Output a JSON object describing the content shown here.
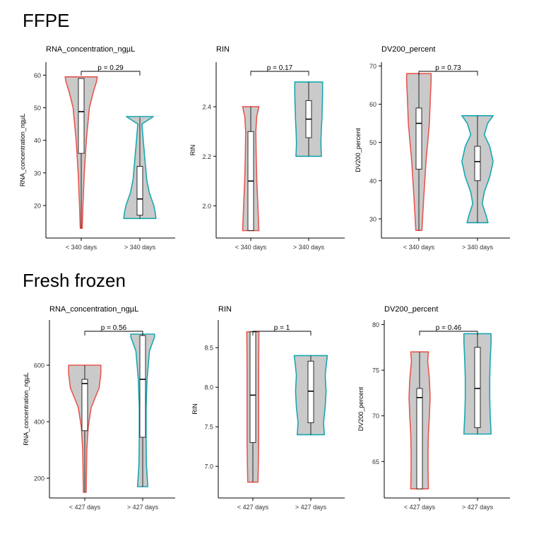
{
  "sections": [
    {
      "title": "FFPE",
      "panels": [
        {
          "title": "RNA_concentration_ngµL",
          "ylabel": "RNA_concentration_ngµL",
          "ylim": [
            10,
            64
          ],
          "yticks": [
            20,
            30,
            40,
            50,
            60
          ],
          "p_label": "p = 0.29",
          "groups": [
            {
              "label": "< 340 days",
              "color": "#e8564e",
              "min": 13,
              "max": 59.5,
              "q1": 36,
              "median": 48.8,
              "q3": 59,
              "wmin": 13,
              "wmax": 59,
              "violin": [
                [
                  13,
                  0.06
                ],
                [
                  20,
                  0.1
                ],
                [
                  30,
                  0.18
                ],
                [
                  40,
                  0.3
                ],
                [
                  50,
                  0.48
                ],
                [
                  55,
                  0.72
                ],
                [
                  58,
                  0.9
                ],
                [
                  59.5,
                  0.95
                ]
              ]
            },
            {
              "label": "> 340 days",
              "color": "#17a8b0",
              "min": 16,
              "max": 47.3,
              "q1": 17,
              "median": 22,
              "q3": 32,
              "wmin": 16,
              "wmax": 47,
              "violin": [
                [
                  16,
                  0.95
                ],
                [
                  18,
                  0.9
                ],
                [
                  20,
                  0.82
                ],
                [
                  24,
                  0.55
                ],
                [
                  28,
                  0.4
                ],
                [
                  34,
                  0.3
                ],
                [
                  40,
                  0.2
                ],
                [
                  45,
                  0.12
                ],
                [
                  47.3,
                  0.8
                ]
              ]
            }
          ]
        },
        {
          "title": "RIN",
          "ylabel": "RIN",
          "ylim": [
            1.87,
            2.58
          ],
          "yticks": [
            2.0,
            2.2,
            2.4
          ],
          "p_label": "p = 0.17",
          "groups": [
            {
              "label": "< 340 days",
              "color": "#e8564e",
              "min": 1.9,
              "max": 2.4,
              "q1": 1.9,
              "median": 2.1,
              "q3": 2.3,
              "wmin": 1.9,
              "wmax": 2.4,
              "violin": [
                [
                  1.9,
                  0.48
                ],
                [
                  2.0,
                  0.42
                ],
                [
                  2.1,
                  0.36
                ],
                [
                  2.2,
                  0.32
                ],
                [
                  2.3,
                  0.3
                ],
                [
                  2.36,
                  0.35
                ],
                [
                  2.4,
                  0.48
                ]
              ]
            },
            {
              "label": "> 340 days",
              "color": "#17a8b0",
              "min": 2.2,
              "max": 2.5,
              "q1": 2.275,
              "median": 2.35,
              "q3": 2.425,
              "wmin": 2.2,
              "wmax": 2.5,
              "violin": [
                [
                  2.2,
                  0.75
                ],
                [
                  2.25,
                  0.72
                ],
                [
                  2.3,
                  0.74
                ],
                [
                  2.35,
                  0.78
                ],
                [
                  2.4,
                  0.8
                ],
                [
                  2.45,
                  0.82
                ],
                [
                  2.5,
                  0.82
                ]
              ]
            }
          ]
        },
        {
          "title": "DV200_percent",
          "ylabel": "DV200_percent",
          "ylim": [
            25,
            71
          ],
          "yticks": [
            30,
            40,
            50,
            60,
            70
          ],
          "p_label": "p = 0.73",
          "groups": [
            {
              "label": "< 340 days",
              "color": "#e8564e",
              "min": 27,
              "max": 68,
              "q1": 43,
              "median": 55,
              "q3": 59,
              "wmin": 27,
              "wmax": 68,
              "violin": [
                [
                  27,
                  0.18
                ],
                [
                  35,
                  0.28
                ],
                [
                  45,
                  0.42
                ],
                [
                  55,
                  0.62
                ],
                [
                  62,
                  0.68
                ],
                [
                  66,
                  0.72
                ],
                [
                  68,
                  0.72
                ]
              ]
            },
            {
              "label": "> 340 days",
              "color": "#17a8b0",
              "min": 29,
              "max": 57,
              "q1": 40,
              "median": 45,
              "q3": 49,
              "wmin": 29,
              "wmax": 57,
              "violin": [
                [
                  29,
                  0.62
                ],
                [
                  31,
                  0.5
                ],
                [
                  34,
                  0.28
                ],
                [
                  37,
                  0.4
                ],
                [
                  41,
                  0.72
                ],
                [
                  45,
                  0.92
                ],
                [
                  49,
                  0.72
                ],
                [
                  52,
                  0.4
                ],
                [
                  55,
                  0.6
                ],
                [
                  57,
                  0.92
                ]
              ]
            }
          ]
        }
      ]
    },
    {
      "title": "Fresh frozen",
      "panels": [
        {
          "title": "RNA_concentration_ngµL",
          "ylabel": "RNA_concentration_ngµL",
          "ylim": [
            130,
            760
          ],
          "yticks": [
            200,
            400,
            600
          ],
          "p_label": "p = 0.56",
          "groups": [
            {
              "label": "< 427 days",
              "color": "#e8564e",
              "min": 150,
              "max": 600,
              "q1": 368,
              "median": 535,
              "q3": 550,
              "wmin": 150,
              "wmax": 600,
              "violin": [
                [
                  150,
                  0.08
                ],
                [
                  220,
                  0.1
                ],
                [
                  300,
                  0.12
                ],
                [
                  380,
                  0.2
                ],
                [
                  450,
                  0.38
                ],
                [
                  520,
                  0.85
                ],
                [
                  570,
                  0.95
                ],
                [
                  600,
                  0.95
                ]
              ]
            },
            {
              "label": "> 427 days",
              "color": "#17a8b0",
              "min": 170,
              "max": 710,
              "q1": 345,
              "median": 550,
              "q3": 705,
              "wmin": 170,
              "wmax": 710,
              "violin": [
                [
                  170,
                  0.3
                ],
                [
                  250,
                  0.22
                ],
                [
                  350,
                  0.2
                ],
                [
                  450,
                  0.2
                ],
                [
                  550,
                  0.26
                ],
                [
                  650,
                  0.4
                ],
                [
                  700,
                  0.7
                ],
                [
                  710,
                  0.7
                ]
              ]
            }
          ]
        },
        {
          "title": "RIN",
          "ylabel": "RIN",
          "ylim": [
            6.6,
            8.85
          ],
          "yticks": [
            7.0,
            7.5,
            8.0,
            8.5
          ],
          "p_label": "p = 1",
          "groups": [
            {
              "label": "< 427 days",
              "color": "#e8564e",
              "min": 6.8,
              "max": 8.7,
              "q1": 7.3,
              "median": 7.9,
              "q3": 8.7,
              "wmin": 6.8,
              "wmax": 8.7,
              "violin": [
                [
                  6.8,
                  0.3
                ],
                [
                  7.0,
                  0.32
                ],
                [
                  7.3,
                  0.34
                ],
                [
                  7.6,
                  0.34
                ],
                [
                  7.9,
                  0.34
                ],
                [
                  8.2,
                  0.34
                ],
                [
                  8.5,
                  0.35
                ],
                [
                  8.7,
                  0.36
                ]
              ]
            },
            {
              "label": "> 427 days",
              "color": "#17a8b0",
              "min": 7.4,
              "max": 8.4,
              "q1": 7.55,
              "median": 7.95,
              "q3": 8.33,
              "wmin": 7.4,
              "wmax": 8.4,
              "violin": [
                [
                  7.4,
                  0.8
                ],
                [
                  7.55,
                  0.75
                ],
                [
                  7.75,
                  0.85
                ],
                [
                  7.95,
                  0.9
                ],
                [
                  8.15,
                  0.85
                ],
                [
                  8.3,
                  0.92
                ],
                [
                  8.4,
                  0.98
                ]
              ]
            }
          ]
        },
        {
          "title": "DV200_percent",
          "ylabel": "DV200_percent",
          "ylim": [
            61,
            80.5
          ],
          "yticks": [
            65,
            70,
            75,
            80
          ],
          "p_label": "p = 0.46",
          "groups": [
            {
              "label": "< 427 days",
              "color": "#e8564e",
              "min": 62,
              "max": 77,
              "q1": 62,
              "median": 72,
              "q3": 73,
              "wmin": 62,
              "wmax": 77,
              "violin": [
                [
                  62,
                  0.52
                ],
                [
                  64,
                  0.5
                ],
                [
                  66,
                  0.5
                ],
                [
                  68,
                  0.52
                ],
                [
                  70,
                  0.58
                ],
                [
                  72,
                  0.62
                ],
                [
                  74,
                  0.58
                ],
                [
                  76,
                  0.48
                ],
                [
                  77,
                  0.52
                ]
              ]
            },
            {
              "label": "> 427 days",
              "color": "#17a8b0",
              "min": 68,
              "max": 79,
              "q1": 68.7,
              "median": 73,
              "q3": 77.5,
              "wmin": 68,
              "wmax": 79,
              "violin": [
                [
                  68,
                  0.8
                ],
                [
                  69,
                  0.78
                ],
                [
                  70,
                  0.75
                ],
                [
                  72,
                  0.72
                ],
                [
                  74,
                  0.72
                ],
                [
                  76,
                  0.75
                ],
                [
                  78,
                  0.8
                ],
                [
                  79,
                  0.8
                ]
              ]
            }
          ]
        }
      ]
    }
  ],
  "chart_data": [
    {
      "type": "violin",
      "section": "FFPE",
      "title": "RNA_concentration_ngµL",
      "ylabel": "RNA_concentration_ngµL",
      "categories": [
        "< 340 days",
        "> 340 days"
      ],
      "annotation": "p = 0.29",
      "ylim": [
        10,
        64
      ]
    },
    {
      "type": "violin",
      "section": "FFPE",
      "title": "RIN",
      "ylabel": "RIN",
      "categories": [
        "< 340 days",
        "> 340 days"
      ],
      "annotation": "p = 0.17",
      "ylim": [
        1.87,
        2.58
      ]
    },
    {
      "type": "violin",
      "section": "FFPE",
      "title": "DV200_percent",
      "ylabel": "DV200_percent",
      "categories": [
        "< 340 days",
        "> 340 days"
      ],
      "annotation": "p = 0.73",
      "ylim": [
        25,
        71
      ]
    },
    {
      "type": "violin",
      "section": "Fresh frozen",
      "title": "RNA_concentration_ngµL",
      "ylabel": "RNA_concentration_ngµL",
      "categories": [
        "< 427 days",
        "> 427 days"
      ],
      "annotation": "p = 0.56",
      "ylim": [
        130,
        760
      ]
    },
    {
      "type": "violin",
      "section": "Fresh frozen",
      "title": "RIN",
      "ylabel": "RIN",
      "categories": [
        "< 427 days",
        "> 427 days"
      ],
      "annotation": "p = 1",
      "ylim": [
        6.6,
        8.85
      ]
    },
    {
      "type": "violin",
      "section": "Fresh frozen",
      "title": "DV200_percent",
      "ylabel": "DV200_percent",
      "categories": [
        "< 427 days",
        "> 427 days"
      ],
      "annotation": "p = 0.46",
      "ylim": [
        61,
        80.5
      ]
    }
  ]
}
